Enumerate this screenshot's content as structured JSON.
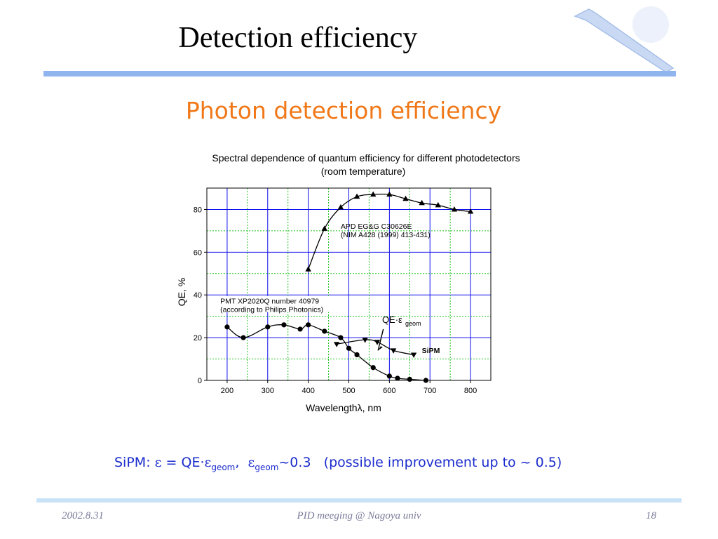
{
  "slide": {
    "title": "Detection efficiency",
    "subtitle": "Photon detection efficiency",
    "formula": {
      "lead": "SiPM:",
      "eps": "ε",
      "eq": "= QE·",
      "eps2": "ε",
      "sub_geom": "geom",
      "comma": ",",
      "eps3": "ε",
      "sub_geom2": "geom",
      "tail": "~0.3",
      "note": "(possible improvement up to ~ 0.5)"
    },
    "footer": {
      "date": "2002.8.31",
      "event": "PID meeging @ Nagoya univ",
      "page": "18"
    }
  },
  "colors": {
    "subtitle": "#f07818",
    "formula": "#1b2ccc",
    "accent_rule": "#8fb4ee",
    "footer_rule": "#c8e2f8",
    "grid_blue": "#1010ee",
    "grid_green": "#20c020"
  },
  "chart_data": {
    "type": "line",
    "title": "Spectral dependence of quantum efficiency for different photodetectors",
    "subtitle": "(room temperature)",
    "xlabel": "Wavelengthλ, nm",
    "ylabel": "QE, %",
    "xlim": [
      150,
      850
    ],
    "ylim": [
      0,
      90
    ],
    "x_ticks": [
      "200",
      "300",
      "400",
      "500",
      "600",
      "700",
      "800"
    ],
    "y_ticks": [
      "0",
      "20",
      "40",
      "60",
      "80"
    ],
    "grid": true,
    "series": [
      {
        "name": "APD EG&G C30626E",
        "label_line2": "(NIM A428 (1999) 413-431)",
        "marker": "triangle-up",
        "x": [
          400,
          440,
          480,
          520,
          560,
          600,
          640,
          680,
          720,
          760,
          800
        ],
        "y": [
          52,
          71,
          81,
          86,
          87,
          87,
          85,
          83,
          82,
          80,
          79
        ]
      },
      {
        "name": "PMT XP2020Q number 40979",
        "label_line2": "(according to Philips Photonics)",
        "marker": "circle",
        "x": [
          200,
          240,
          300,
          340,
          380,
          400,
          440,
          480,
          500,
          520,
          560,
          600,
          620,
          650,
          690
        ],
        "y": [
          25,
          20,
          25,
          26,
          24,
          26,
          23,
          20,
          15,
          12,
          6,
          2,
          1,
          0.5,
          0
        ]
      },
      {
        "name": "SiPM",
        "annotation": "QE·ε",
        "annotation_sub": "geom",
        "marker": "triangle-down",
        "x": [
          470,
          540,
          570,
          610,
          660
        ],
        "y": [
          17,
          19,
          18,
          14,
          12
        ]
      }
    ]
  }
}
